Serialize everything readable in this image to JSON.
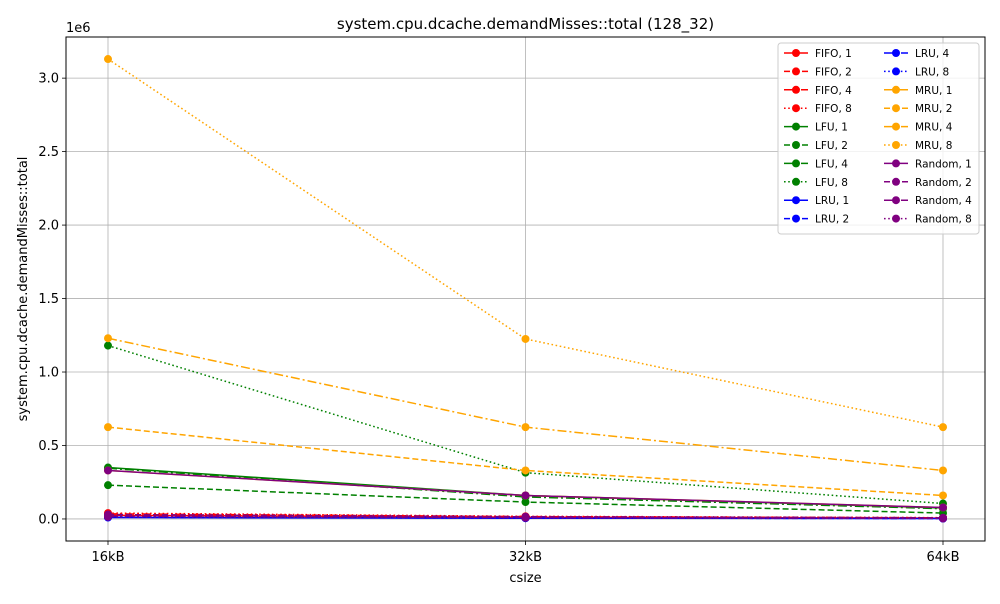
{
  "chart_data": {
    "type": "line",
    "title": "system.cpu.dcache.demandMisses::total (128_32)",
    "xlabel": "csize",
    "ylabel": "system.cpu.dcache.demandMisses::total",
    "offset_text": "1e6",
    "categories": [
      "16kB",
      "32kB",
      "64kB"
    ],
    "y_ticks": [
      0.0,
      0.5,
      1.0,
      1.5,
      2.0,
      2.5,
      3.0
    ],
    "y_tick_labels": [
      "0.0",
      "0.5",
      "1.0",
      "1.5",
      "2.0",
      "2.5",
      "3.0"
    ],
    "y_scale": 1000000,
    "ylim": [
      -0.15,
      3.28
    ],
    "grid": true,
    "legend_position": "top-right",
    "legend_columns": 2,
    "series": [
      {
        "name": "FIFO, 1",
        "color": "#ff0000",
        "dash": "solid",
        "values": [
          0.025,
          0.012,
          0.006
        ]
      },
      {
        "name": "FIFO, 2",
        "color": "#ff0000",
        "dash": "dashed",
        "values": [
          0.03,
          0.014,
          0.007
        ]
      },
      {
        "name": "FIFO, 4",
        "color": "#ff0000",
        "dash": "dashdot",
        "values": [
          0.035,
          0.016,
          0.008
        ]
      },
      {
        "name": "FIFO, 8",
        "color": "#ff0000",
        "dash": "dotted",
        "values": [
          0.04,
          0.018,
          0.009
        ]
      },
      {
        "name": "LFU, 1",
        "color": "#008000",
        "dash": "solid",
        "values": [
          0.35,
          0.16,
          0.075
        ]
      },
      {
        "name": "LFU, 2",
        "color": "#008000",
        "dash": "dashed",
        "values": [
          0.23,
          0.115,
          0.04
        ]
      },
      {
        "name": "LFU, 4",
        "color": "#008000",
        "dash": "dashdot",
        "values": [
          0.345,
          0.15,
          0.07
        ]
      },
      {
        "name": "LFU, 8",
        "color": "#008000",
        "dash": "dotted",
        "values": [
          1.18,
          0.315,
          0.105
        ]
      },
      {
        "name": "LRU, 1",
        "color": "#0000ff",
        "dash": "solid",
        "values": [
          0.01,
          0.005,
          0.003
        ]
      },
      {
        "name": "LRU, 2",
        "color": "#0000ff",
        "dash": "dashed",
        "values": [
          0.012,
          0.006,
          0.003
        ]
      },
      {
        "name": "LRU, 4",
        "color": "#0000ff",
        "dash": "dashdot",
        "values": [
          0.014,
          0.007,
          0.004
        ]
      },
      {
        "name": "LRU, 8",
        "color": "#0000ff",
        "dash": "dotted",
        "values": [
          0.016,
          0.008,
          0.004
        ]
      },
      {
        "name": "MRU, 1",
        "color": "#ffa500",
        "dash": "solid",
        "values": [
          0.33,
          0.16,
          0.078
        ]
      },
      {
        "name": "MRU, 2",
        "color": "#ffa500",
        "dash": "dashed",
        "values": [
          0.625,
          0.33,
          0.16
        ]
      },
      {
        "name": "MRU, 4",
        "color": "#ffa500",
        "dash": "dashdot",
        "values": [
          1.23,
          0.625,
          0.33
        ]
      },
      {
        "name": "MRU, 8",
        "color": "#ffa500",
        "dash": "dotted",
        "values": [
          3.13,
          1.225,
          0.625
        ]
      },
      {
        "name": "Random, 1",
        "color": "#800080",
        "dash": "solid",
        "values": [
          0.33,
          0.16,
          0.078
        ]
      },
      {
        "name": "Random, 2",
        "color": "#800080",
        "dash": "dashed",
        "values": [
          0.03,
          0.015,
          0.008
        ]
      },
      {
        "name": "Random, 4",
        "color": "#800080",
        "dash": "dashdot",
        "values": [
          0.02,
          0.01,
          0.005
        ]
      },
      {
        "name": "Random, 8",
        "color": "#800080",
        "dash": "dotted",
        "values": [
          0.015,
          0.008,
          0.004
        ]
      }
    ]
  }
}
